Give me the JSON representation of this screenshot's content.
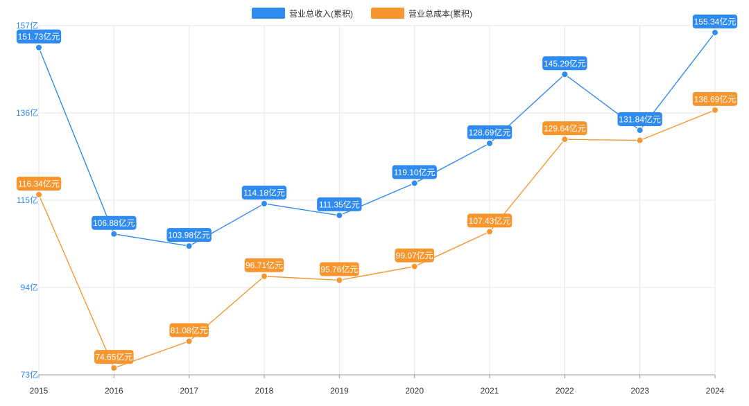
{
  "chart_data": {
    "type": "line",
    "categories": [
      "2015",
      "2016",
      "2017",
      "2018",
      "2019",
      "2020",
      "2021",
      "2022",
      "2023",
      "2024"
    ],
    "series": [
      {
        "name": "营业总收入(累积)",
        "color": "#2f8bf0",
        "values": [
          151.73,
          106.88,
          103.98,
          114.18,
          111.35,
          119.1,
          128.69,
          145.29,
          131.84,
          155.34
        ],
        "labels": [
          "151.73亿元",
          "106.88亿元",
          "103.98亿元",
          "114.18亿元",
          "111.35亿元",
          "119.10亿元",
          "128.69亿元",
          "145.29亿元",
          "131.84亿元",
          "155.34亿元"
        ]
      },
      {
        "name": "营业总成本(累积)",
        "color": "#f7962f",
        "values": [
          116.34,
          74.65,
          81.08,
          96.71,
          95.76,
          99.07,
          107.43,
          129.64,
          129.4,
          136.69
        ],
        "labels": [
          "116.34亿元",
          "74.65亿元",
          "81.08亿元",
          "96.71亿元",
          "95.76亿元",
          "99.07亿元",
          "107.43亿元",
          "129.64亿元",
          "",
          "136.69亿元"
        ]
      }
    ],
    "yticks": [
      73,
      94,
      115,
      136,
      157
    ],
    "ytick_labels": [
      "73亿",
      "94亿",
      "115亿",
      "136亿",
      "157亿"
    ],
    "ylim": [
      73,
      157
    ],
    "legend_position": "top-center",
    "grid": true
  }
}
